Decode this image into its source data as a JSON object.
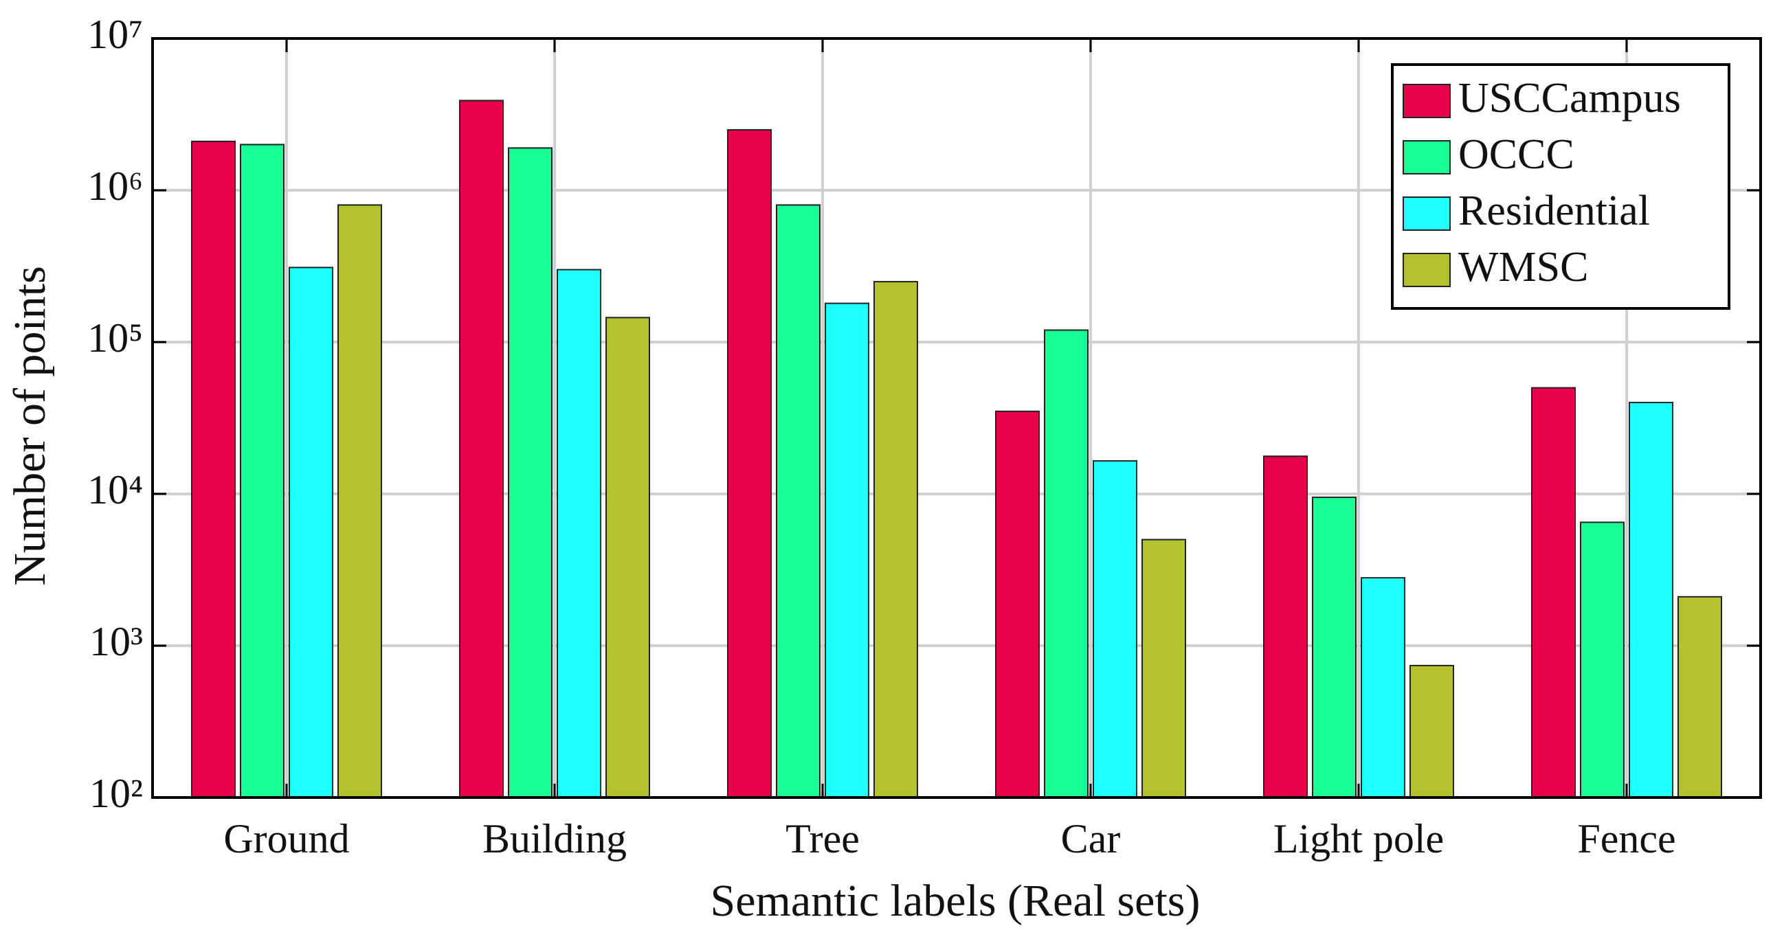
{
  "chart_data": {
    "type": "bar",
    "x_label": "Semantic labels (Real sets)",
    "y_label": "Number of points",
    "categories": [
      "Ground",
      "Building",
      "Tree",
      "Car",
      "Light pole",
      "Fence"
    ],
    "series": [
      {
        "name": "USCCampus",
        "color": "#e8004a",
        "values": [
          2100000,
          3900000,
          2500000,
          35000,
          17700,
          50000
        ]
      },
      {
        "name": "OCCC",
        "color": "#17ff95",
        "values": [
          2000000,
          1900000,
          800000,
          120000,
          9500,
          6500
        ]
      },
      {
        "name": "Residential",
        "color": "#22ffff",
        "values": [
          310000,
          300000,
          180000,
          16500,
          2800,
          40000
        ]
      },
      {
        "name": "WMSC",
        "color": "#b5c22f",
        "values": [
          800000,
          145000,
          250000,
          5000,
          740,
          2100
        ]
      }
    ],
    "ylim": [
      100,
      10000000
    ],
    "y_scale": "log",
    "yticks": [
      {
        "value": 100,
        "label": "10²"
      },
      {
        "value": 1000,
        "label": "10³"
      },
      {
        "value": 10000,
        "label": "10⁴"
      },
      {
        "value": 100000,
        "label": "10⁵"
      },
      {
        "value": 1000000,
        "label": "10⁶"
      },
      {
        "value": 10000000,
        "label": "10⁷"
      }
    ],
    "grid": true,
    "legend_position": "upper-right"
  }
}
